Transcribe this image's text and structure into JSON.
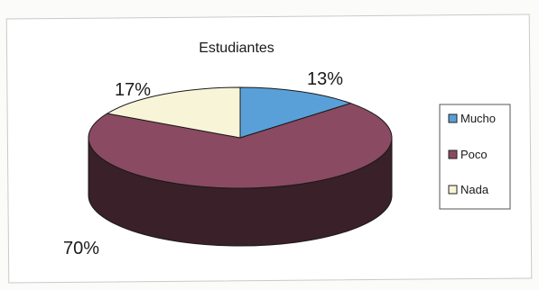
{
  "chart_data": {
    "type": "pie",
    "title": "Estudiantes",
    "categories": [
      "Mucho",
      "Poco",
      "Nada"
    ],
    "values": [
      13,
      70,
      17
    ],
    "labels": [
      "13%",
      "70%",
      "17%"
    ],
    "legend_position": "right",
    "style": "3d",
    "colors": {
      "Mucho": "#5aa0d8",
      "Poco": "#8a4a62",
      "Nada": "#f8f4d8"
    },
    "side_colors": {
      "Mucho": "#2f5e85",
      "Poco": "#3a2028",
      "Nada": "#a9a58a"
    }
  }
}
